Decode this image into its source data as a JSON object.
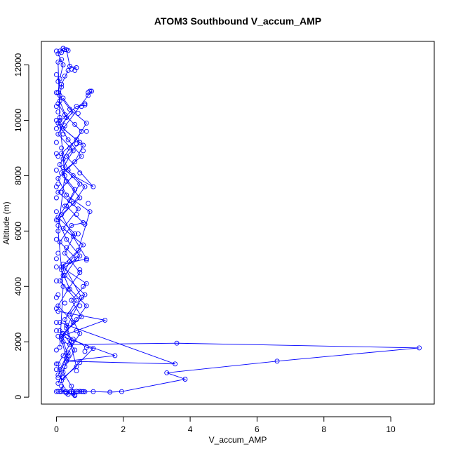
{
  "chart_data": {
    "type": "scatter",
    "title": "ATOM3 Southbound V_accum_AMP",
    "xlabel": "V_accum_AMP",
    "ylabel": "Altitude (m)",
    "xlim": [
      -0.45,
      11.3
    ],
    "ylim": [
      -250,
      12850
    ],
    "x_ticks": [
      0,
      2,
      4,
      6,
      8,
      10
    ],
    "y_ticks": [
      0,
      2000,
      4000,
      6000,
      8000,
      10000,
      12000
    ],
    "grid": false,
    "legend": "none",
    "series_color": "#0000ff",
    "marker": "open-circle",
    "line": true,
    "segments": [
      [
        [
          0.8,
          200
        ],
        [
          1.1,
          200
        ],
        [
          1.6,
          180
        ],
        [
          1.95,
          200
        ],
        [
          3.85,
          650
        ],
        [
          3.3,
          880
        ],
        [
          6.6,
          1300
        ],
        [
          10.85,
          1780
        ],
        [
          3.6,
          1950
        ],
        [
          0.4,
          1900
        ],
        [
          0.2,
          2000
        ]
      ],
      [
        [
          0.1,
          2700
        ],
        [
          3.55,
          1200
        ],
        [
          0.3,
          1300
        ],
        [
          1.75,
          1500
        ],
        [
          0.15,
          2200
        ],
        [
          1.45,
          2780
        ],
        [
          0.05,
          3100
        ]
      ],
      [
        [
          0.15,
          600
        ],
        [
          1.1,
          1760
        ],
        [
          0.9,
          1800
        ],
        [
          0.5,
          2100
        ],
        [
          0.1,
          2400
        ]
      ],
      [
        [
          0.1,
          200
        ],
        [
          0.25,
          190
        ],
        [
          0.45,
          200
        ],
        [
          0.6,
          210
        ],
        [
          0.75,
          200
        ],
        [
          0.85,
          195
        ]
      ],
      [
        [
          0.3,
          150
        ],
        [
          0.55,
          80
        ],
        [
          0.45,
          400
        ],
        [
          0.2,
          900
        ],
        [
          0.35,
          1500
        ],
        [
          0.15,
          2200
        ],
        [
          0.6,
          2800
        ],
        [
          0.9,
          3300
        ],
        [
          0.4,
          3900
        ],
        [
          0.15,
          4600
        ],
        [
          0.7,
          5100
        ],
        [
          0.3,
          5700
        ],
        [
          0.05,
          6400
        ],
        [
          0.5,
          7000
        ],
        [
          0.85,
          7600
        ],
        [
          0.35,
          8200
        ],
        [
          0.15,
          8800
        ],
        [
          0.6,
          9300
        ],
        [
          0.9,
          9900
        ],
        [
          0.4,
          10400
        ],
        [
          0.1,
          10900
        ]
      ],
      [
        [
          0.05,
          500
        ],
        [
          0.25,
          1100
        ],
        [
          0.55,
          1700
        ],
        [
          0.2,
          2300
        ],
        [
          0.75,
          2900
        ],
        [
          0.45,
          3500
        ],
        [
          0.9,
          4100
        ],
        [
          0.15,
          4700
        ],
        [
          0.65,
          5300
        ],
        [
          1.0,
          6700
        ],
        [
          0.3,
          7300
        ],
        [
          0.05,
          7900
        ],
        [
          0.55,
          8500
        ],
        [
          0.8,
          9100
        ],
        [
          0.2,
          9700
        ],
        [
          0.95,
          10900
        ],
        [
          1.05,
          11050
        ]
      ],
      [
        [
          0.1,
          1000
        ],
        [
          0.35,
          1600
        ],
        [
          0.7,
          2300
        ],
        [
          0.4,
          3000
        ],
        [
          0.85,
          3700
        ],
        [
          0.25,
          4400
        ],
        [
          0.6,
          5000
        ],
        [
          0.1,
          5600
        ],
        [
          0.45,
          6200
        ],
        [
          0.8,
          6300
        ],
        [
          0.3,
          6900
        ],
        [
          0.55,
          7500
        ],
        [
          0.15,
          8100
        ],
        [
          0.75,
          8700
        ],
        [
          0.35,
          9300
        ],
        [
          0.05,
          9900
        ],
        [
          0.6,
          10500
        ],
        [
          0.85,
          10550
        ]
      ],
      [
        [
          0.2,
          300
        ],
        [
          0.05,
          1200
        ],
        [
          0.45,
          2000
        ],
        [
          0.25,
          2800
        ],
        [
          0.6,
          3500
        ],
        [
          0.1,
          4200
        ],
        [
          0.4,
          4900
        ],
        [
          0.8,
          5500
        ],
        [
          0.2,
          6100
        ],
        [
          0.65,
          6800
        ],
        [
          0.05,
          7400
        ],
        [
          0.5,
          8000
        ],
        [
          1.1,
          7600
        ],
        [
          0.3,
          8700
        ],
        [
          0.7,
          9200
        ],
        [
          0.1,
          9800
        ],
        [
          0.5,
          10300
        ],
        [
          0.2,
          10800
        ]
      ],
      [
        [
          0.05,
          800
        ],
        [
          0.3,
          1400
        ],
        [
          0.15,
          2100
        ],
        [
          0.5,
          2700
        ],
        [
          0.05,
          3300
        ],
        [
          0.35,
          3900
        ],
        [
          0.7,
          4500
        ],
        [
          0.25,
          5200
        ],
        [
          0.55,
          5900
        ],
        [
          0.05,
          6500
        ],
        [
          0.4,
          7100
        ],
        [
          0.7,
          7700
        ],
        [
          0.2,
          8300
        ],
        [
          0.5,
          8900
        ],
        [
          0.05,
          9500
        ],
        [
          0.3,
          10100
        ],
        [
          0.1,
          10700
        ],
        [
          0.15,
          11300
        ],
        [
          0.35,
          11800
        ]
      ],
      [
        [
          0.05,
          11000
        ],
        [
          0.1,
          11500
        ],
        [
          0.2,
          12000
        ],
        [
          0.05,
          12400
        ],
        [
          0.2,
          12600
        ],
        [
          0.3,
          12550
        ],
        [
          0.4,
          11950
        ],
        [
          0.6,
          11900
        ]
      ],
      [
        [
          0.1,
          1800
        ],
        [
          0.2,
          4000
        ],
        [
          0.05,
          6000
        ],
        [
          0.25,
          8000
        ],
        [
          0.1,
          10000
        ],
        [
          0.05,
          12100
        ],
        [
          0.15,
          12200
        ]
      ],
      [
        [
          0.2,
          700
        ],
        [
          0.6,
          1100
        ],
        [
          0.3,
          2500
        ],
        [
          0.75,
          3600
        ],
        [
          0.2,
          4800
        ],
        [
          0.9,
          5000
        ],
        [
          0.5,
          5800
        ],
        [
          0.15,
          6600
        ],
        [
          0.7,
          7200
        ],
        [
          0.3,
          7800
        ],
        [
          0.1,
          8400
        ],
        [
          0.4,
          9000
        ],
        [
          0.75,
          9600
        ],
        [
          0.25,
          10200
        ],
        [
          0.05,
          10600
        ]
      ]
    ],
    "points": [
      [
        0.0,
        12500
      ],
      [
        0.1,
        12500
      ],
      [
        0.15,
        12450
      ],
      [
        0.2,
        12600
      ],
      [
        0.25,
        12550
      ],
      [
        0.35,
        12520
      ],
      [
        0.0,
        11650
      ],
      [
        0.05,
        11400
      ],
      [
        0.15,
        11200
      ],
      [
        0.25,
        11600
      ],
      [
        0.45,
        11850
      ],
      [
        0.55,
        11800
      ],
      [
        0.0,
        10500
      ],
      [
        0.05,
        10300
      ],
      [
        0.1,
        10100
      ],
      [
        0.0,
        9700
      ],
      [
        0.0,
        9200
      ],
      [
        0.05,
        8700
      ],
      [
        0.0,
        8200
      ],
      [
        0.05,
        7700
      ],
      [
        0.0,
        7200
      ],
      [
        0.0,
        6700
      ],
      [
        0.05,
        6200
      ],
      [
        0.0,
        5700
      ],
      [
        0.05,
        5200
      ],
      [
        0.0,
        4700
      ],
      [
        0.0,
        4200
      ],
      [
        0.05,
        3700
      ],
      [
        0.0,
        3200
      ],
      [
        0.0,
        2700
      ],
      [
        0.05,
        2200
      ],
      [
        0.0,
        1700
      ],
      [
        0.0,
        1200
      ],
      [
        0.05,
        700
      ],
      [
        0.0,
        1000
      ],
      [
        0.0,
        2400
      ],
      [
        0.0,
        3600
      ],
      [
        0.0,
        5000
      ],
      [
        0.0,
        6400
      ],
      [
        0.0,
        7600
      ],
      [
        0.0,
        8800
      ],
      [
        0.0,
        10000
      ],
      [
        0.0,
        11000
      ],
      [
        0.15,
        9000
      ],
      [
        0.2,
        9500
      ],
      [
        0.25,
        9800
      ],
      [
        0.2,
        8600
      ],
      [
        0.15,
        7400
      ],
      [
        0.25,
        6900
      ],
      [
        0.3,
        5400
      ],
      [
        0.2,
        4400
      ],
      [
        0.25,
        3400
      ],
      [
        0.3,
        2600
      ],
      [
        0.2,
        1500
      ],
      [
        0.15,
        400
      ],
      [
        0.95,
        11000
      ],
      [
        1.0,
        11050
      ],
      [
        0.85,
        10600
      ],
      [
        0.75,
        10500
      ],
      [
        0.65,
        10250
      ],
      [
        0.55,
        9850
      ],
      [
        0.9,
        9600
      ],
      [
        0.6,
        9150
      ],
      [
        0.8,
        8900
      ],
      [
        0.7,
        8100
      ],
      [
        0.95,
        7000
      ],
      [
        0.6,
        6600
      ],
      [
        0.85,
        6250
      ],
      [
        0.65,
        5900
      ],
      [
        0.9,
        4950
      ],
      [
        0.7,
        4600
      ],
      [
        0.8,
        4000
      ],
      [
        0.7,
        3300
      ],
      [
        0.6,
        2400
      ],
      [
        0.85,
        1650
      ],
      [
        0.7,
        1250
      ],
      [
        0.6,
        950
      ],
      [
        0.0,
        200
      ],
      [
        0.05,
        210
      ],
      [
        0.15,
        205
      ],
      [
        0.3,
        195
      ],
      [
        0.4,
        190
      ],
      [
        0.5,
        205
      ],
      [
        0.65,
        195
      ],
      [
        0.7,
        210
      ],
      [
        0.8,
        200
      ],
      [
        0.35,
        100
      ],
      [
        0.5,
        130
      ],
      [
        0.55,
        60
      ]
    ]
  }
}
